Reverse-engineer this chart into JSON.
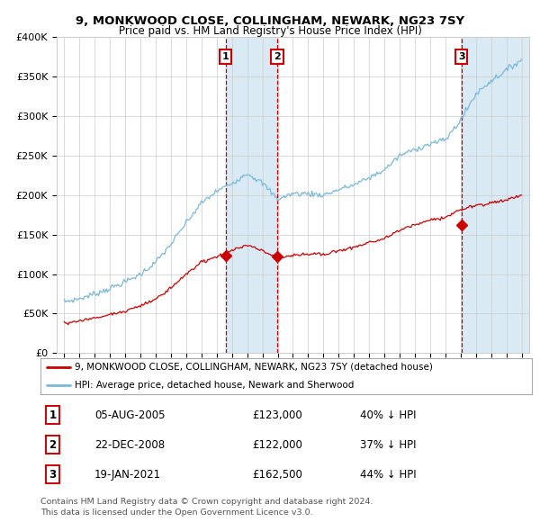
{
  "title1": "9, MONKWOOD CLOSE, COLLINGHAM, NEWARK, NG23 7SY",
  "title2": "Price paid vs. HM Land Registry's House Price Index (HPI)",
  "ylim": [
    0,
    400000
  ],
  "yticks": [
    0,
    50000,
    100000,
    150000,
    200000,
    250000,
    300000,
    350000,
    400000
  ],
  "ytick_labels": [
    "£0",
    "£50K",
    "£100K",
    "£150K",
    "£200K",
    "£250K",
    "£300K",
    "£350K",
    "£400K"
  ],
  "xlim_start": 1994.5,
  "xlim_end": 2025.5,
  "hpi_color": "#7ab8d9",
  "price_color": "#cc0000",
  "shade_color": "#daeaf5",
  "vline_color": "#cc0000",
  "transaction1": {
    "date_label": "05-AUG-2005",
    "year": 2005.59,
    "price": 123000,
    "note": "40% ↓ HPI",
    "num": "1"
  },
  "transaction2": {
    "date_label": "22-DEC-2008",
    "year": 2008.97,
    "price": 122000,
    "note": "37% ↓ HPI",
    "num": "2"
  },
  "transaction3": {
    "date_label": "19-JAN-2021",
    "year": 2021.05,
    "price": 162500,
    "note": "44% ↓ HPI",
    "num": "3"
  },
  "legend1": "9, MONKWOOD CLOSE, COLLINGHAM, NEWARK, NG23 7SY (detached house)",
  "legend2": "HPI: Average price, detached house, Newark and Sherwood",
  "footnote1": "Contains HM Land Registry data © Crown copyright and database right 2024.",
  "footnote2": "This data is licensed under the Open Government Licence v3.0.",
  "background_color": "#ffffff",
  "grid_color": "#cccccc",
  "yearly_hpi": {
    "1995": 65000,
    "1996": 69000,
    "1997": 75000,
    "1998": 82000,
    "1999": 90000,
    "2000": 100000,
    "2001": 115000,
    "2002": 138000,
    "2003": 165000,
    "2004": 190000,
    "2005": 205000,
    "2006": 215000,
    "2007": 228000,
    "2008": 215000,
    "2009": 195000,
    "2010": 202000,
    "2011": 202000,
    "2012": 200000,
    "2013": 207000,
    "2014": 213000,
    "2015": 222000,
    "2016": 232000,
    "2017": 250000,
    "2018": 258000,
    "2019": 265000,
    "2020": 270000,
    "2021": 295000,
    "2022": 328000,
    "2023": 345000,
    "2024": 358000,
    "2025": 372000
  },
  "yearly_price": {
    "1995": 38000,
    "1996": 41000,
    "1997": 44000,
    "1998": 49000,
    "1999": 53000,
    "2000": 60000,
    "2001": 68000,
    "2002": 83000,
    "2003": 100000,
    "2004": 115000,
    "2005": 122000,
    "2006": 130000,
    "2007": 137000,
    "2008": 130000,
    "2009": 120000,
    "2010": 124000,
    "2011": 126000,
    "2012": 125000,
    "2013": 130000,
    "2014": 134000,
    "2015": 140000,
    "2016": 145000,
    "2017": 155000,
    "2018": 163000,
    "2019": 168000,
    "2020": 172000,
    "2021": 182000,
    "2022": 187000,
    "2023": 190000,
    "2024": 194000,
    "2025": 200000
  }
}
